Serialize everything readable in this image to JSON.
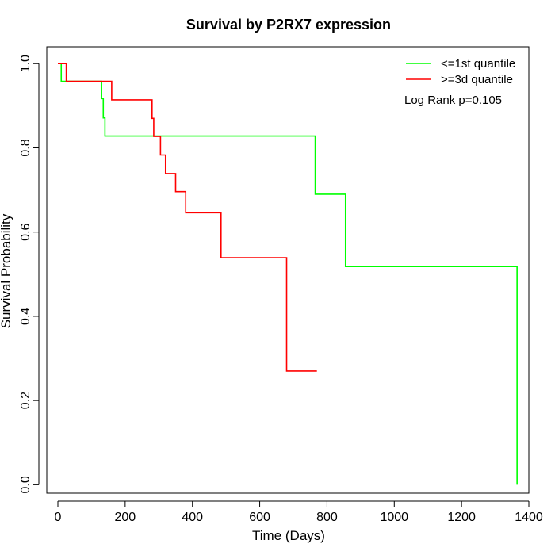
{
  "chart_data": {
    "type": "line",
    "title": "Survival by P2RX7 expression",
    "xlabel": "Time (Days)",
    "ylabel": "Survival Probability",
    "xlim": [
      -33,
      1400
    ],
    "ylim": [
      -0.02,
      1.04
    ],
    "xticks": [
      0,
      200,
      400,
      600,
      800,
      1000,
      1200,
      1400
    ],
    "yticks": [
      0.0,
      0.2,
      0.4,
      0.6,
      0.8,
      1.0
    ],
    "xtick_labels": [
      "0",
      "200",
      "400",
      "600",
      "800",
      "1000",
      "1200",
      "1400"
    ],
    "ytick_labels": [
      "0.0",
      "0.2",
      "0.4",
      "0.6",
      "0.8",
      "1.0"
    ],
    "grid": false,
    "legend_position": "top-right",
    "annotation": "Log Rank p=0.105",
    "series": [
      {
        "name": "<=1st quantile",
        "color": "#00ff00",
        "step": true,
        "x": [
          0,
          10,
          130,
          135,
          140,
          765,
          855,
          1365,
          1365
        ],
        "y": [
          1.0,
          0.958,
          0.917,
          0.871,
          0.828,
          0.69,
          0.518,
          0.518,
          0.0
        ]
      },
      {
        "name": ">=3d quantile",
        "color": "#ff0000",
        "step": true,
        "x": [
          0,
          25,
          160,
          280,
          285,
          305,
          320,
          350,
          380,
          485,
          680,
          770
        ],
        "y": [
          1.0,
          0.958,
          0.914,
          0.87,
          0.827,
          0.783,
          0.739,
          0.696,
          0.646,
          0.539,
          0.27,
          0.27
        ]
      }
    ]
  }
}
